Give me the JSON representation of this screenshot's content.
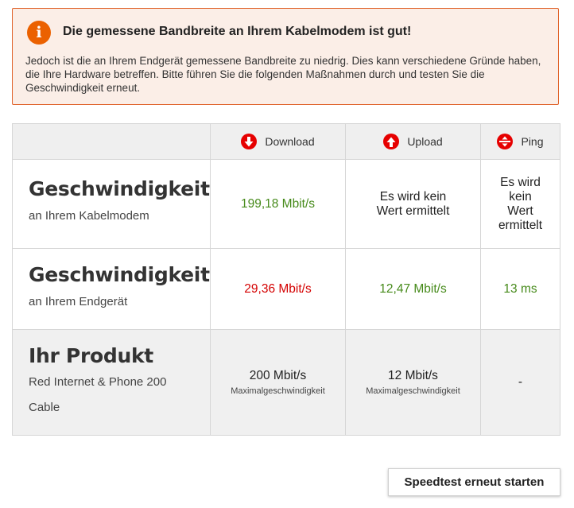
{
  "notice": {
    "icon": "info-icon",
    "title": "Die gemessene Bandbreite an Ihrem Kabelmodem ist gut!",
    "text": "Jedoch ist die an Ihrem Endgerät gemessene Bandbreite zu niedrig. Dies kann verschiedene Gründe haben, die Ihre Hardware betreffen. Bitte führen Sie die folgenden Maßnahmen durch und testen Sie die Geschwindigkeit erneut.",
    "accent_color": "#eb6100"
  },
  "table": {
    "headers": {
      "download": {
        "label": "Download",
        "icon": "download-arrow-icon"
      },
      "upload": {
        "label": "Upload",
        "icon": "upload-arrow-icon"
      },
      "ping": {
        "label": "Ping",
        "icon": "ping-icon"
      }
    },
    "rows": [
      {
        "title": "Geschwindigkeit",
        "subtitle": "an Ihrem Kabelmodem",
        "download": "199,18 Mbit/s",
        "upload": "Es wird kein Wert ermittelt",
        "ping": "Es wird kein Wert ermittelt"
      },
      {
        "title": "Geschwindigkeit",
        "subtitle": "an Ihrem Endgerät",
        "download": "29,36 Mbit/s",
        "upload": "12,47 Mbit/s",
        "ping": "13 ms"
      },
      {
        "title": "Ihr Produkt",
        "subtitle_line1": "Red Internet & Phone 200",
        "subtitle_line2": "Cable",
        "download": "200 Mbit/s",
        "download_sub": "Maximalgeschwindigkeit",
        "upload": "12 Mbit/s",
        "upload_sub": "Maximalgeschwindigkeit",
        "ping": "-"
      }
    ],
    "colors": {
      "good": "#468a1a",
      "bad": "#d40000",
      "icon_red": "#e60000"
    }
  },
  "actions": {
    "restart_label": "Speedtest erneut starten"
  }
}
